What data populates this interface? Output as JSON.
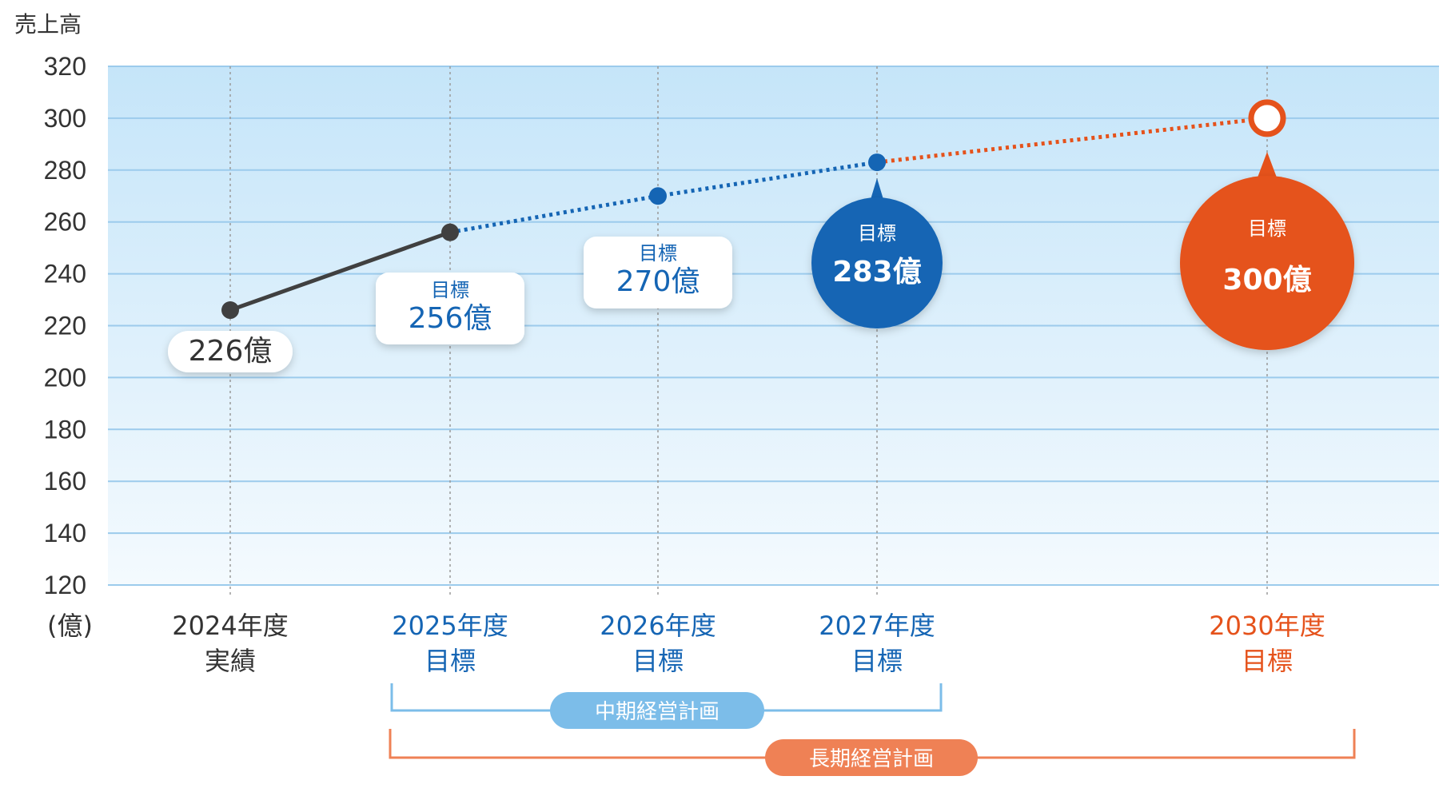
{
  "chart_data": {
    "type": "line",
    "ylabel": "売上高",
    "yunit": "(億)",
    "ylim": [
      120,
      320
    ],
    "yticks": [
      120,
      140,
      160,
      180,
      200,
      220,
      240,
      260,
      280,
      300,
      320
    ],
    "categories": [
      {
        "line1": "2024年度",
        "line2": "実績"
      },
      {
        "line1": "2025年度",
        "line2": "目標"
      },
      {
        "line1": "2026年度",
        "line2": "目標"
      },
      {
        "line1": "2027年度",
        "line2": "目標"
      },
      {
        "line1": "2030年度",
        "line2": "目標"
      }
    ],
    "x": [
      2024,
      2025,
      2026,
      2027,
      2030
    ],
    "values": [
      226,
      256,
      270,
      283,
      300
    ],
    "labels": [
      {
        "top": "",
        "value": "226億"
      },
      {
        "top": "目標",
        "value": "256億"
      },
      {
        "top": "目標",
        "value": "270億"
      },
      {
        "top": "目標",
        "value": "283億"
      },
      {
        "top": "目標",
        "value": "300億"
      }
    ],
    "grid": true,
    "plans": [
      {
        "label": "中期経営計画",
        "from": 2025,
        "to": 2027,
        "color": "#7cbde9"
      },
      {
        "label": "長期経営計画",
        "from": 2025,
        "to": 2030,
        "color": "#ef8155"
      }
    ]
  },
  "colors": {
    "actual": "#404040",
    "target_blue": "#1565b4",
    "target_orange": "#e5521b",
    "grid": "#9ccbec",
    "plot_top": "#c5e5f9",
    "plot_bottom": "#f4fafe"
  }
}
